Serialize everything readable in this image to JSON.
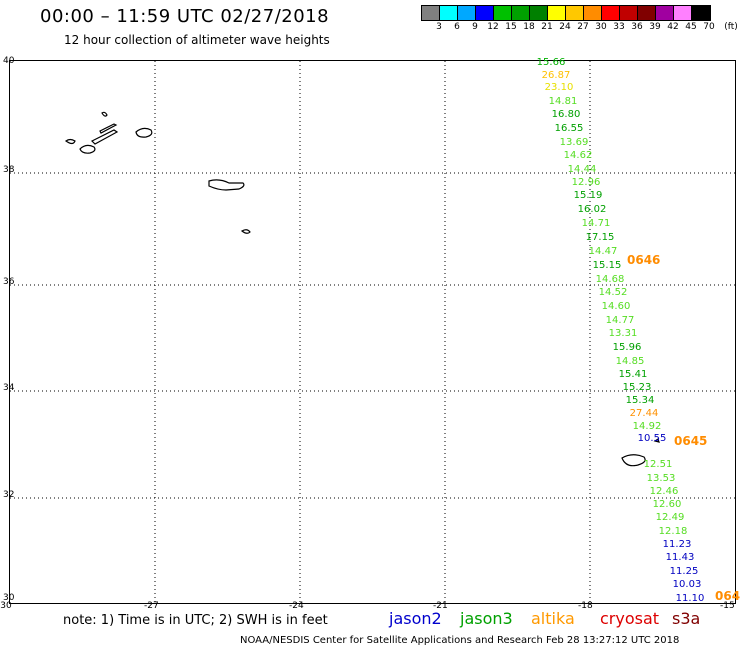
{
  "header": {
    "title": "00:00 – 11:59 UTC 02/27/2018",
    "subtitle": "12 hour collection of altimeter wave heights"
  },
  "legend": {
    "unit": "(ft)",
    "colors": [
      "#808080",
      "#00ffff",
      "#00a8ff",
      "#0000ff",
      "#00c000",
      "#00a000",
      "#008000",
      "#ffff00",
      "#ffc800",
      "#ff8c00",
      "#ff0000",
      "#c00000",
      "#800000",
      "#a000a0",
      "#ff80ff",
      "#000000"
    ],
    "labels": [
      "3",
      "6",
      "9",
      "12",
      "15",
      "18",
      "21",
      "24",
      "27",
      "30",
      "33",
      "36",
      "39",
      "42",
      "45",
      "70"
    ]
  },
  "axes": {
    "lat_labels": [
      "40",
      "38",
      "36",
      "34",
      "32",
      "30"
    ],
    "lon_labels": [
      "-30",
      "-27",
      "-24",
      "-21",
      "-18",
      "-15"
    ]
  },
  "points": [
    {
      "v": "15.66",
      "c": "#00b000"
    },
    {
      "v": "26.87",
      "c": "#ffc000"
    },
    {
      "v": "23.10",
      "c": "#e8e000"
    },
    {
      "v": "14.81",
      "c": "#55dd22"
    },
    {
      "v": "16.80",
      "c": "#00a000"
    },
    {
      "v": "16.55",
      "c": "#00a000"
    },
    {
      "v": "13.69",
      "c": "#55dd22"
    },
    {
      "v": "14.62",
      "c": "#55dd22"
    },
    {
      "v": "14.44",
      "c": "#55dd22"
    },
    {
      "v": "12.96",
      "c": "#55dd22"
    },
    {
      "v": "15.19",
      "c": "#00a000"
    },
    {
      "v": "16.02",
      "c": "#00a000"
    },
    {
      "v": "14.71",
      "c": "#55dd22"
    },
    {
      "v": "17.15",
      "c": "#00a000"
    },
    {
      "v": "14.47",
      "c": "#55dd22"
    },
    {
      "v": "15.15",
      "c": "#00a000"
    },
    {
      "v": "14.68",
      "c": "#55dd22"
    },
    {
      "v": "14.52",
      "c": "#55dd22"
    },
    {
      "v": "14.60",
      "c": "#55dd22"
    },
    {
      "v": "14.77",
      "c": "#55dd22"
    },
    {
      "v": "13.31",
      "c": "#55dd22"
    },
    {
      "v": "15.96",
      "c": "#00a000"
    },
    {
      "v": "14.85",
      "c": "#55dd22"
    },
    {
      "v": "15.41",
      "c": "#00a000"
    },
    {
      "v": "15.23",
      "c": "#00a000"
    },
    {
      "v": "15.34",
      "c": "#00a000"
    },
    {
      "v": "27.44",
      "c": "#ff9000"
    },
    {
      "v": "14.92",
      "c": "#55dd22"
    },
    {
      "v": "10.55",
      "c": "#0000c0"
    },
    {
      "v": "12.51",
      "c": "#55dd22"
    },
    {
      "v": "13.53",
      "c": "#55dd22"
    },
    {
      "v": "12.46",
      "c": "#55dd22"
    },
    {
      "v": "12.60",
      "c": "#55dd22"
    },
    {
      "v": "12.49",
      "c": "#55dd22"
    },
    {
      "v": "12.18",
      "c": "#55dd22"
    },
    {
      "v": "11.23",
      "c": "#0000c0"
    },
    {
      "v": "11.43",
      "c": "#0000c0"
    },
    {
      "v": "11.25",
      "c": "#0000c0"
    },
    {
      "v": "10.03",
      "c": "#0000c0"
    },
    {
      "v": "11.10",
      "c": "#0000c0"
    }
  ],
  "pass_labels": [
    "0646",
    "0645",
    "064"
  ],
  "footer": {
    "note": "note: 1) Time is in UTC; 2) SWH is in feet",
    "satellites": [
      {
        "name": "jason2",
        "color": "#0000cc"
      },
      {
        "name": "jason3",
        "color": "#00a000"
      },
      {
        "name": "altika",
        "color": "#ff9900"
      },
      {
        "name": "cryosat",
        "color": "#dd0000"
      },
      {
        "name": "s3a",
        "color": "#800000"
      }
    ],
    "credit": "NOAA/NESDIS Center for Satellite Applications and Research     Feb 28 13:27:12 UTC 2018"
  }
}
